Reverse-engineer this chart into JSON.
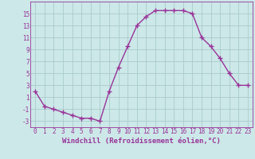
{
  "x": [
    0,
    1,
    2,
    3,
    4,
    5,
    6,
    7,
    8,
    9,
    10,
    11,
    12,
    13,
    14,
    15,
    16,
    17,
    18,
    19,
    20,
    21,
    22,
    23
  ],
  "y": [
    2,
    -0.5,
    -1,
    -1.5,
    -2,
    -2.5,
    -2.5,
    -3,
    2,
    6,
    9.5,
    13,
    14.5,
    15.5,
    15.5,
    15.5,
    15.5,
    15,
    11,
    9.5,
    7.5,
    5,
    3,
    3
  ],
  "line_color": "#993399",
  "marker": "+",
  "marker_size": 4,
  "bg_color": "#cce8e8",
  "grid_color": "#aacccc",
  "xlabel": "Windchill (Refroidissement éolien,°C)",
  "xlim": [
    -0.5,
    23.5
  ],
  "ylim": [
    -4,
    17
  ],
  "yticks": [
    -3,
    -1,
    1,
    3,
    5,
    7,
    9,
    11,
    13,
    15
  ],
  "xticks": [
    0,
    1,
    2,
    3,
    4,
    5,
    6,
    7,
    8,
    9,
    10,
    11,
    12,
    13,
    14,
    15,
    16,
    17,
    18,
    19,
    20,
    21,
    22,
    23
  ],
  "tick_fontsize": 5.5,
  "xlabel_fontsize": 6.5,
  "line_width": 1.0
}
